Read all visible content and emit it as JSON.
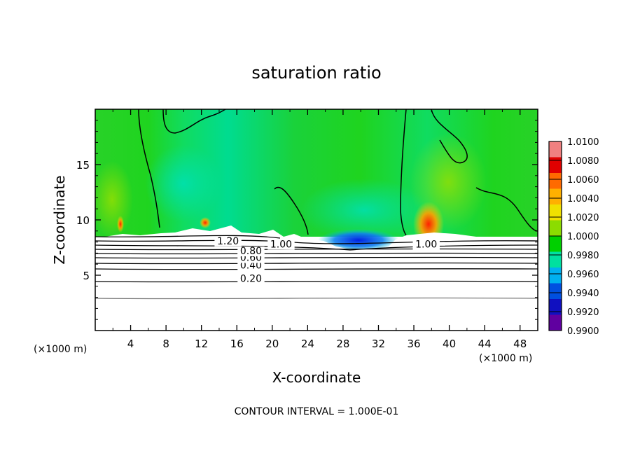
{
  "chart_data": {
    "type": "heatmap",
    "title": "saturation ratio",
    "xlabel": "X-coordinate",
    "ylabel": "Z-coordinate",
    "x_unit_label": "(×1000 m)",
    "y_unit_label": "(×1000 m)",
    "xlim": [
      0,
      50
    ],
    "ylim": [
      0,
      20
    ],
    "x_ticks": [
      4,
      8,
      12,
      16,
      20,
      24,
      28,
      32,
      36,
      40,
      44,
      48
    ],
    "y_ticks": [
      5,
      10,
      15
    ],
    "x_tick_labels": [
      "4",
      "8",
      "12",
      "16",
      "20",
      "24",
      "28",
      "32",
      "36",
      "40",
      "44",
      "48"
    ],
    "y_tick_labels": [
      "5",
      "10",
      "15"
    ],
    "colorbar": {
      "values": [
        1.01,
        1.008,
        1.006,
        1.004,
        1.002,
        1.0,
        0.998,
        0.996,
        0.994,
        0.992,
        0.99
      ],
      "labels": [
        "1.0100",
        "1.0080",
        "1.0060",
        "1.0040",
        "1.0020",
        "1.0000",
        "0.9980",
        "0.9960",
        "0.9940",
        "0.9920",
        "0.9900"
      ],
      "colors": [
        "#f08080",
        "#e00000",
        "#ff6a00",
        "#ffb000",
        "#f0e000",
        "#8cdc00",
        "#00d000",
        "#00e0a0",
        "#00b0f0",
        "#0050e0",
        "#1010c0",
        "#6000a0"
      ]
    },
    "contour_levels": [
      0.2,
      0.4,
      0.6,
      0.8,
      1.0,
      1.2
    ],
    "contour_labels": [
      {
        "text": "0.20",
        "x": 17.6,
        "y": 4.4
      },
      {
        "text": "0.40",
        "x": 17.6,
        "y": 5.6
      },
      {
        "text": "0.60",
        "x": 17.6,
        "y": 6.3
      },
      {
        "text": "0.80",
        "x": 17.6,
        "y": 6.9
      },
      {
        "text": "1.20",
        "x": 15.0,
        "y": 7.8
      },
      {
        "text": "1.00",
        "x": 21.0,
        "y": 7.5
      },
      {
        "text": "1.00",
        "x": 37.4,
        "y": 7.5
      }
    ],
    "contour_interval_note": "CONTOUR INTERVAL = 1.000E-01",
    "colors": {
      "background_field": "#1fd41f",
      "weak_supersat": "#7fd800",
      "subsat": "#00e0b0",
      "strong_subsat": "#1040ff",
      "supersat": "#ff3000"
    }
  }
}
